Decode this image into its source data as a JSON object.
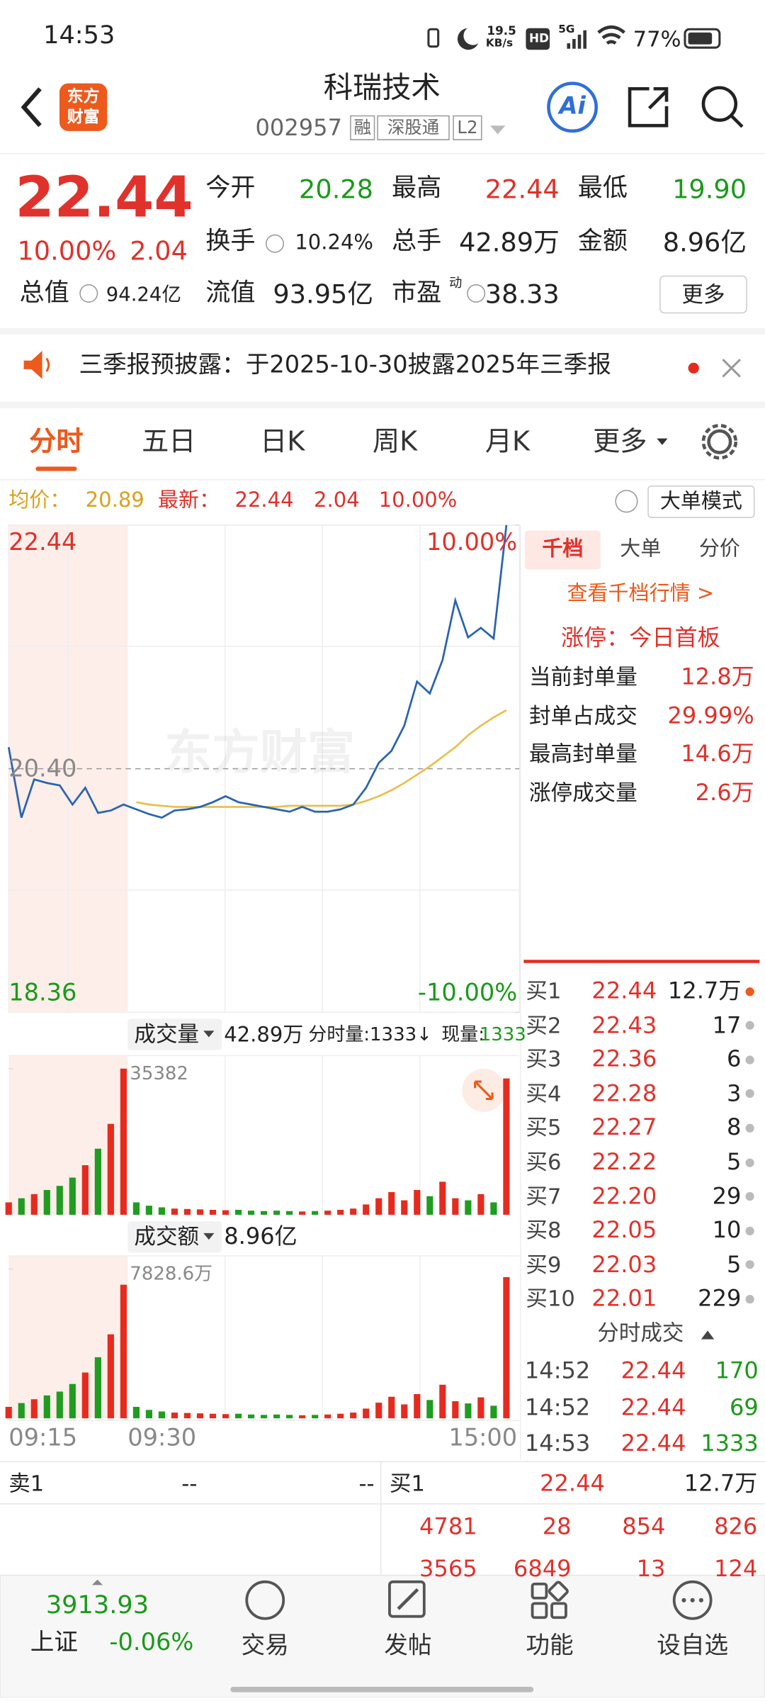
{
  "status_bar": {
    "time": "14:53",
    "speed": "19.5",
    "speed_unit": "KB/s",
    "hd": "HD",
    "network": "5G",
    "battery": "77%"
  },
  "header": {
    "logo": [
      "东方",
      "财富"
    ],
    "name": "科瑞技术",
    "code": "002957",
    "tags": [
      "融",
      "深股通",
      "L2"
    ],
    "ai": "Ai"
  },
  "quote": {
    "price": "22.44",
    "change_pct": "10.00%",
    "change": "2.04",
    "fields": [
      {
        "label": "今开",
        "value": "20.28"
      },
      {
        "label": "最高",
        "value": "22.44"
      },
      {
        "label": "最低",
        "value": "19.90"
      },
      {
        "label": "换手",
        "value": "10.24%"
      },
      {
        "label": "总手",
        "value": "42.89万"
      },
      {
        "label": "金额",
        "value": "8.96亿"
      },
      {
        "label": "总值",
        "value": "94.24亿"
      },
      {
        "label": "流值",
        "value": "93.95亿"
      },
      {
        "label": "市盈",
        "sup": "动",
        "value": "38.33"
      }
    ],
    "more": "更多"
  },
  "notice": "三季报预披露：于2025-10-30披露2025年三季报",
  "tabs": [
    "分时",
    "五日",
    "日K",
    "周K",
    "月K",
    "更多"
  ],
  "info": {
    "avg_label": "均价：",
    "avg": "20.89",
    "latest_label": "最新：",
    "latest": "22.44",
    "change": "2.04",
    "pct": "10.00%",
    "mode": "大单模式"
  },
  "intraday_chart": {
    "type": "line",
    "watermark": "东方财富",
    "ylim": [
      18.36,
      22.44
    ],
    "yticks": [
      22.44,
      {
        "value": 20.4,
        "label": "20.40"
      },
      18.36
    ],
    "y2lim": [
      -10,
      10
    ],
    "y2ticks": [
      {
        "value": 10,
        "label": "10.00%"
      },
      {
        "value": -10,
        "label": "-10.00%"
      }
    ],
    "x_labels": [
      "09:15",
      "09:30",
      "15:00"
    ],
    "series": [
      {
        "color": "#2a64b0",
        "values": [
          20.58,
          19.99,
          20.31,
          20.28,
          20.26,
          20.1,
          20.24,
          20.03,
          20.05,
          20.1,
          20.06,
          20.02,
          19.99,
          20.05,
          20.06,
          20.08,
          20.12,
          20.17,
          20.12,
          20.1,
          20.08,
          20.06,
          20.04,
          20.08,
          20.04,
          20.04,
          20.06,
          20.1,
          20.24,
          20.45,
          20.55,
          20.76,
          21.13,
          21.03,
          21.31,
          21.81,
          21.5,
          21.58,
          21.49,
          22.44
        ]
      },
      {
        "color": "#e8c050",
        "values": [
          null,
          null,
          null,
          null,
          null,
          null,
          null,
          null,
          null,
          null,
          20.12,
          20.1,
          20.09,
          20.08,
          20.08,
          20.08,
          20.08,
          20.08,
          20.08,
          20.08,
          20.08,
          20.08,
          20.09,
          20.09,
          20.09,
          20.09,
          20.09,
          20.1,
          20.13,
          20.17,
          20.22,
          20.28,
          20.35,
          20.42,
          20.5,
          20.58,
          20.68,
          20.76,
          20.83,
          20.89
        ]
      }
    ]
  },
  "volume_chart": {
    "type": "bar",
    "title": "成交量",
    "total": "42.89万",
    "minute_label": "分时量:1333↓",
    "current_label": "现量:",
    "current": "1333",
    "up_color": "#e62b1e",
    "down_color": "#1f9d1f",
    "ylim": [
      0,
      35382
    ],
    "yticks": [
      35382
    ],
    "values": [
      3000,
      4000,
      5000,
      6000,
      7000,
      9000,
      12000,
      16000,
      22000,
      35382,
      3000,
      2200,
      1800,
      1500,
      1400,
      1300,
      1200,
      1100,
      1200,
      1000,
      900,
      1000,
      900,
      800,
      900,
      1000,
      1200,
      1500,
      2500,
      4000,
      5500,
      3500,
      6000,
      4500,
      8000,
      4000,
      3500,
      5000,
      3000,
      33000
    ]
  },
  "amount_chart": {
    "type": "bar",
    "title": "成交额",
    "total": "8.96亿",
    "ylim": [
      0,
      7828.6
    ],
    "yticks": [
      {
        "value": 7828.6,
        "label": "7828.6万"
      }
    ],
    "values": [
      600,
      800,
      1000,
      1200,
      1400,
      1800,
      2400,
      3200,
      4400,
      7000,
      600,
      440,
      360,
      300,
      280,
      260,
      240,
      220,
      240,
      200,
      180,
      200,
      180,
      160,
      180,
      200,
      240,
      300,
      510,
      820,
      1130,
      730,
      1270,
      960,
      1760,
      900,
      780,
      1100,
      660,
      7400
    ]
  },
  "panel": {
    "tabs": [
      "千档",
      "大单",
      "分价"
    ],
    "link": "查看千档行情 >",
    "limit_up": "涨停：今日首板",
    "stats": [
      {
        "label": "当前封单量",
        "value": "12.8万"
      },
      {
        "label": "封单占成交",
        "value": "29.99%"
      },
      {
        "label": "最高封单量",
        "value": "14.6万"
      },
      {
        "label": "涨停成交量",
        "value": "2.6万"
      }
    ],
    "bids": [
      {
        "label": "买1",
        "price": "22.44",
        "volume": "12.7万"
      },
      {
        "label": "买2",
        "price": "22.43",
        "volume": "17"
      },
      {
        "label": "买3",
        "price": "22.36",
        "volume": "6"
      },
      {
        "label": "买4",
        "price": "22.28",
        "volume": "3"
      },
      {
        "label": "买5",
        "price": "22.27",
        "volume": "8"
      },
      {
        "label": "买6",
        "price": "22.22",
        "volume": "5"
      },
      {
        "label": "买7",
        "price": "22.20",
        "volume": "29"
      },
      {
        "label": "买8",
        "price": "22.05",
        "volume": "10"
      },
      {
        "label": "买9",
        "price": "22.03",
        "volume": "5"
      },
      {
        "label": "买10",
        "price": "22.01",
        "volume": "229"
      }
    ],
    "trades_title": "分时成交",
    "trades": [
      {
        "time": "14:52",
        "price": "22.44",
        "volume": "170"
      },
      {
        "time": "14:52",
        "price": "22.44",
        "volume": "69"
      },
      {
        "time": "14:53",
        "price": "22.44",
        "volume": "1333"
      }
    ]
  },
  "book": {
    "ask": [
      "卖1",
      "--",
      "--"
    ],
    "bid": [
      "买1",
      "22.44",
      "12.7万"
    ],
    "rows": [
      [
        "4781",
        "28",
        "854",
        "826"
      ],
      [
        "3565",
        "6849",
        "13",
        "124"
      ]
    ]
  },
  "footer": {
    "index_value": "3913.93",
    "index_name": "上证",
    "index_change": "-0.06%",
    "nav": [
      "交易",
      "发帖",
      "功能",
      "设自选"
    ]
  }
}
